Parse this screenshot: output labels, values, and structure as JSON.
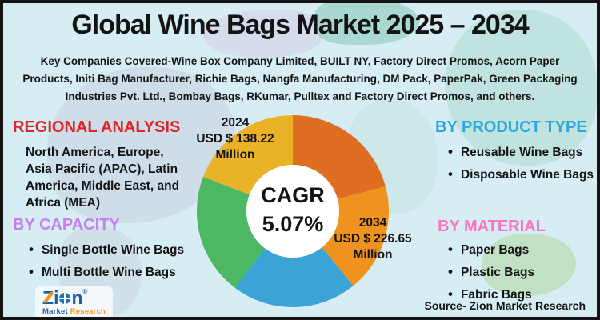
{
  "title": "Global Wine Bags Market 2025 – 2034",
  "key_companies": "Key Companies Covered-Wine Box Company Limited, BUILT NY, Factory Direct Promos, Acorn Paper Products, Initi Bag Manufacturer, Richie Bags, Nangfa Manufacturing, DM Pack, PaperPak, Green Packaging Industries Pvt. Ltd., Bombay Bags, RKumar, Pulltex and Factory Direct Promos, and others.",
  "sections": {
    "regional": {
      "heading": "REGIONAL ANALYSIS",
      "heading_color": "#DD2427",
      "text": "North America, Europe, Asia Pacific (APAC), Latin America, Middle East, and Africa (MEA)"
    },
    "capacity": {
      "heading": "BY CAPACITY",
      "heading_color": "#C77FEE",
      "items": [
        "Single Bottle Wine Bags",
        "Multi Bottle Wine Bags"
      ]
    },
    "product_type": {
      "heading": "BY PRODUCT TYPE",
      "heading_color": "#29A8E0",
      "items": [
        "Reusable Wine Bags",
        "Disposable Wine Bags"
      ]
    },
    "material": {
      "heading": "BY MATERIAL",
      "heading_color": "#FC73C0",
      "items": [
        "Paper Bags",
        "Plastic Bags",
        "Fabric Bags"
      ]
    }
  },
  "chart_data": {
    "type": "pie",
    "donut": true,
    "title": "Global Wine Bags Market 2025 – 2034",
    "center_label": "CAGR",
    "center_value": "5.07%",
    "values": {
      "market_2024_usd_million": 138.22,
      "market_2034_usd_million": 226.65,
      "cagr_percent": 5.07
    },
    "segments": [
      {
        "name": "top-right",
        "color": "#DF6E23",
        "start_deg": 0,
        "end_deg": 75
      },
      {
        "name": "right",
        "color": "#F0921E",
        "start_deg": 75,
        "end_deg": 141
      },
      {
        "name": "bottom",
        "color": "#3BA3D6",
        "start_deg": 141,
        "end_deg": 217
      },
      {
        "name": "left",
        "color": "#4DB863",
        "start_deg": 217,
        "end_deg": 291
      },
      {
        "name": "top-left",
        "color": "#E9B227",
        "start_deg": 291,
        "end_deg": 360
      }
    ],
    "annotations": [
      {
        "year": "2024",
        "value": "USD $ 138.22 Million"
      },
      {
        "year": "2034",
        "value": "USD $ 226.65 Million"
      }
    ]
  },
  "logo": {
    "text_z": "Z",
    "text_i": "i",
    "text_n": "n",
    "registered": "®",
    "sub_blue": "Market",
    "sub_orange": "Research"
  },
  "source": "Source- Zion Market Research"
}
